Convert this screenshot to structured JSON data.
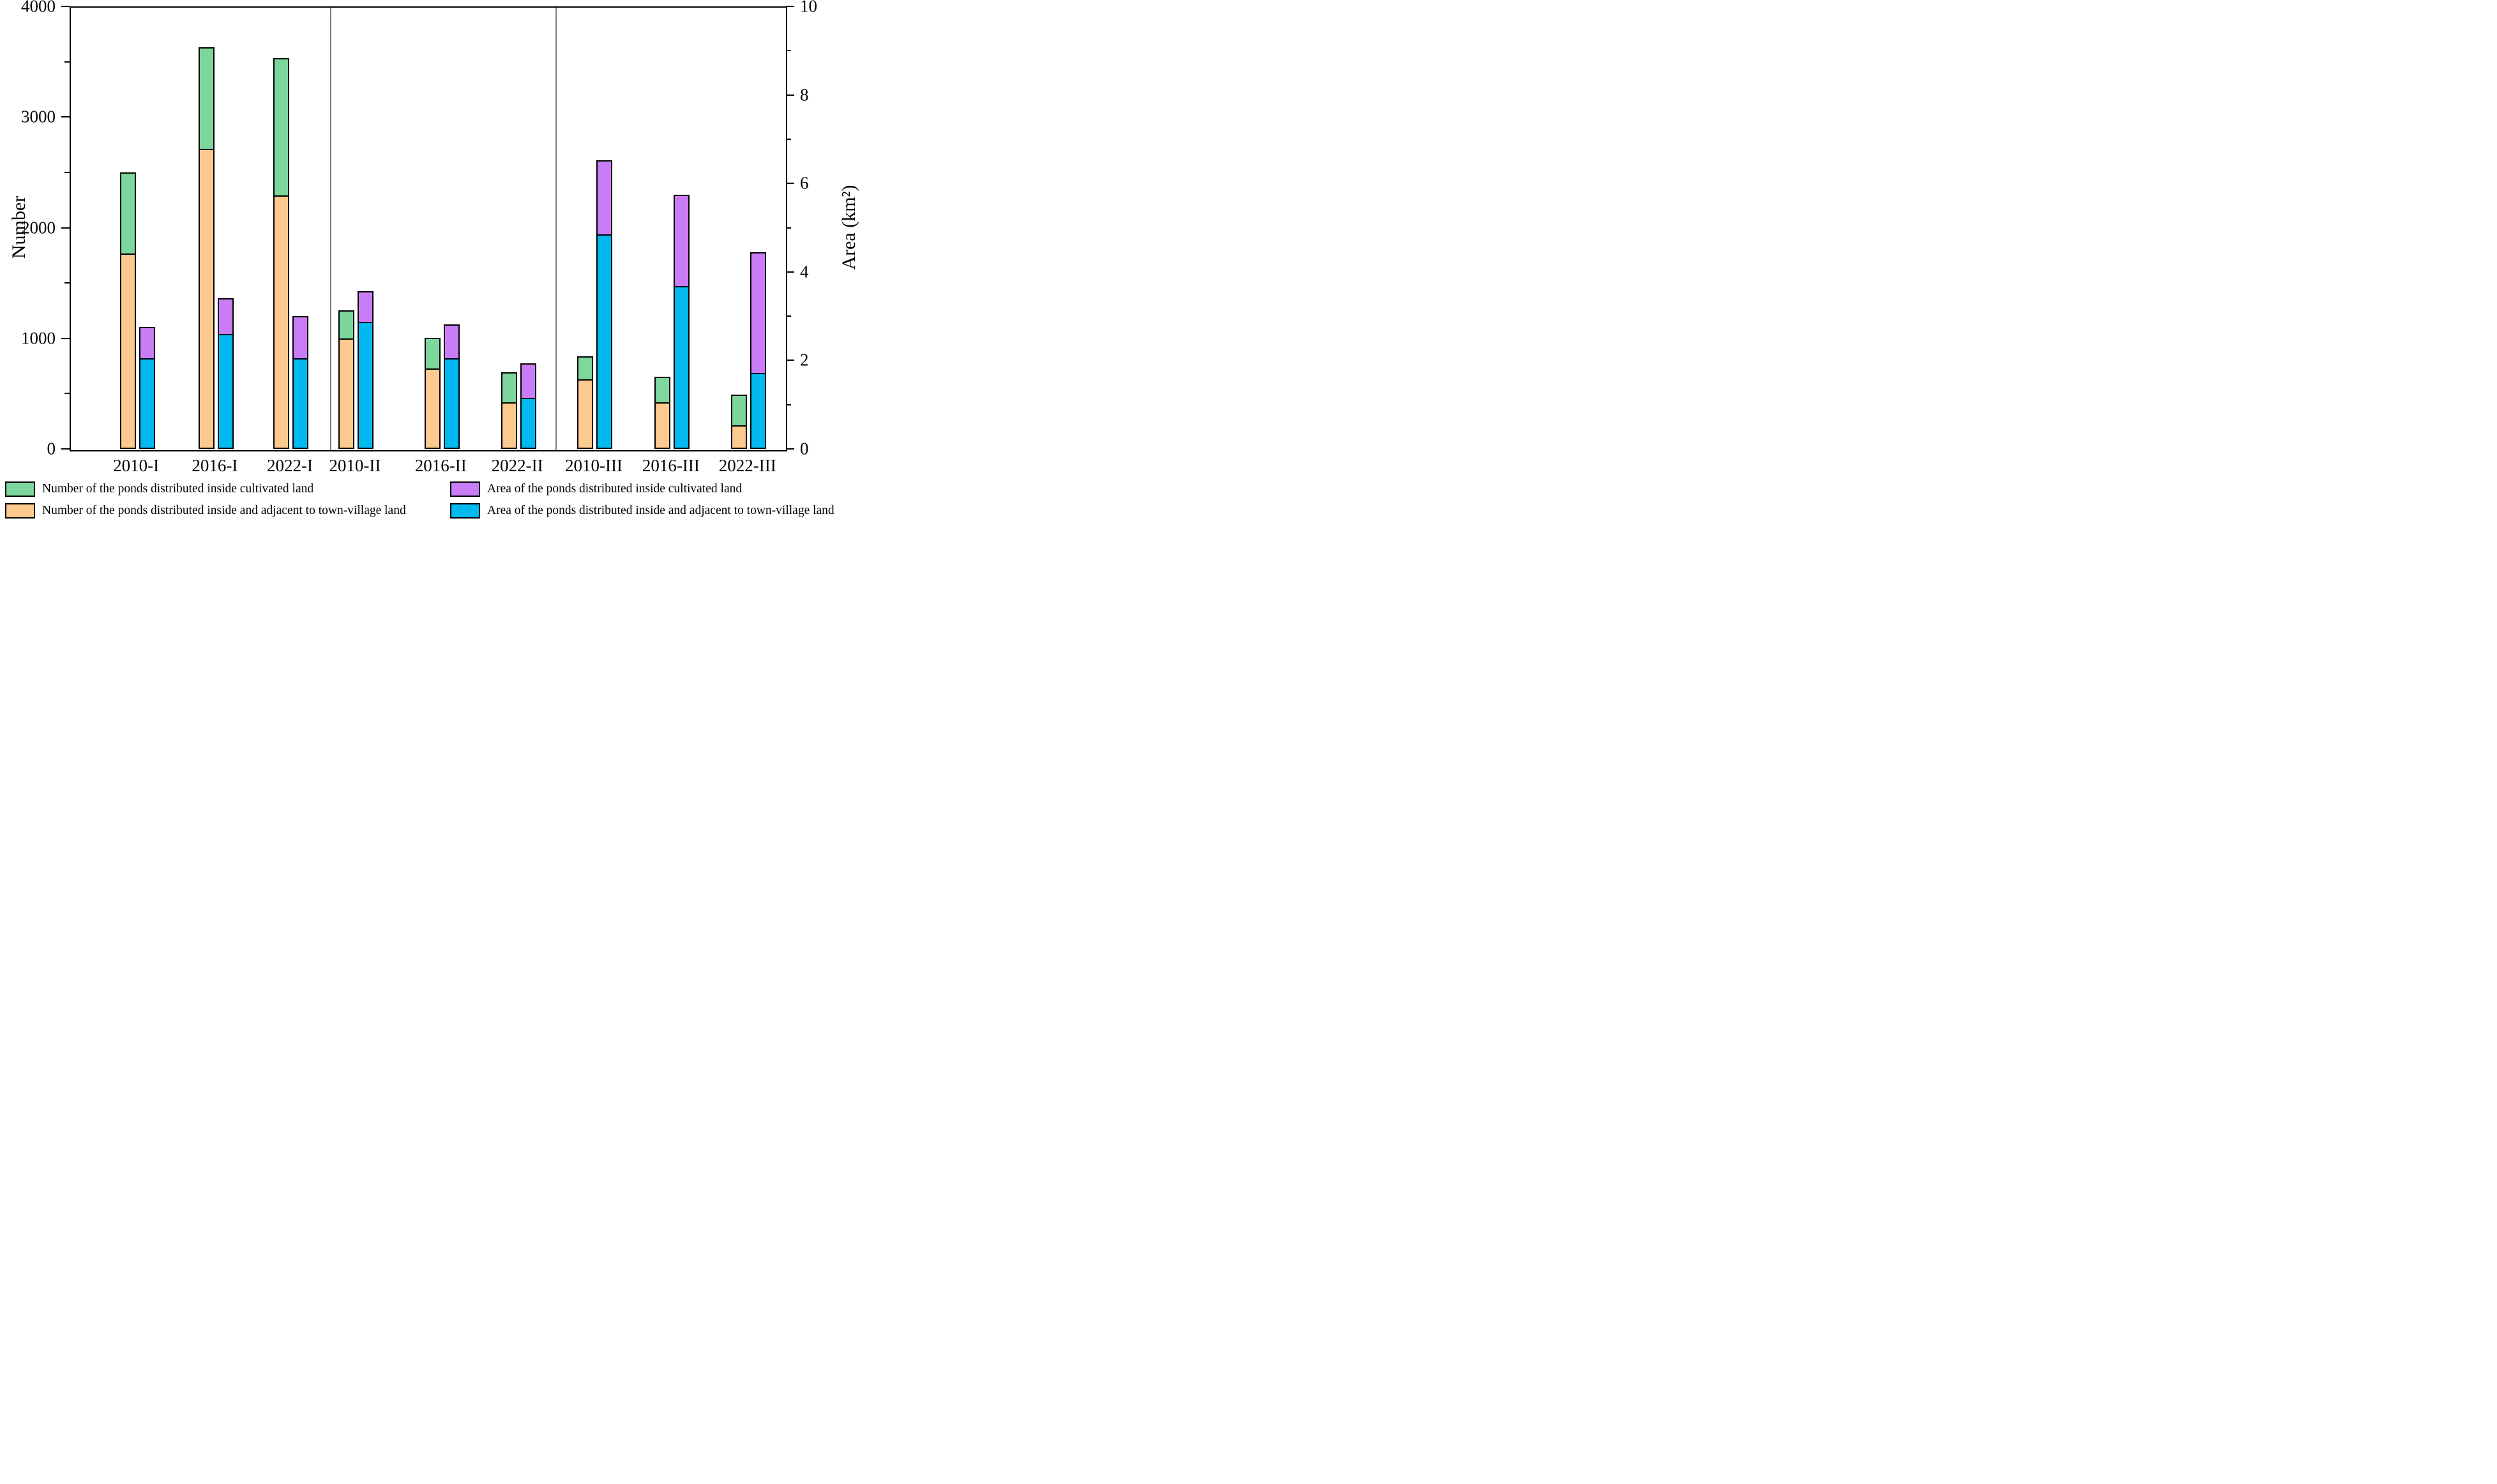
{
  "chart_data": {
    "type": "bar",
    "stacked": true,
    "title": "",
    "categories": [
      "2010-I",
      "2016-I",
      "2022-I",
      "2010-II",
      "2016-II",
      "2022-II",
      "2010-III",
      "2016-III",
      "2022-III"
    ],
    "series": [
      {
        "name": "Number of the ponds distributed inside and adjacent to town-village land",
        "axis": "left",
        "stack": "number",
        "color_key": "orange",
        "values": [
          1765,
          2710,
          2290,
          1000,
          730,
          420,
          630,
          420,
          215
        ]
      },
      {
        "name": "Number of the ponds distributed inside cultivated land",
        "axis": "left",
        "stack": "number",
        "color_key": "green",
        "values": [
          735,
          920,
          1245,
          255,
          275,
          275,
          205,
          230,
          278
        ]
      },
      {
        "name": "Area of the ponds distributed inside and adjacent to town-village land",
        "axis": "right",
        "stack": "area",
        "color_key": "blue",
        "values": [
          2.05,
          2.6,
          2.05,
          2.87,
          2.05,
          1.16,
          4.85,
          3.68,
          1.71
        ]
      },
      {
        "name": "Area of the ponds distributed inside cultivated land",
        "axis": "right",
        "stack": "area",
        "color_key": "purple",
        "values": [
          0.7,
          0.8,
          0.95,
          0.7,
          0.77,
          0.77,
          1.67,
          2.07,
          2.74
        ]
      }
    ],
    "left_axis": {
      "label": "Number",
      "min": 0,
      "max": 4000,
      "major_ticks": [
        0,
        1000,
        2000,
        3000,
        4000
      ],
      "minor_ticks": [
        500,
        1500,
        2500,
        3500
      ]
    },
    "right_axis": {
      "label": "Area (km²)",
      "min": 0,
      "max": 10,
      "major_ticks": [
        0,
        2,
        4,
        6,
        8,
        10
      ],
      "minor_ticks": [
        1,
        3,
        5,
        7,
        9
      ]
    },
    "grid": false,
    "group_separators_after": [
      "2022-I",
      "2022-II"
    ],
    "legend_position": "bottom"
  },
  "legend": {
    "entries": [
      {
        "color_key": "green",
        "label": "Number of the ponds distributed inside cultivated land"
      },
      {
        "color_key": "orange",
        "label": "Number of the ponds distributed inside and adjacent to town-village land"
      },
      {
        "color_key": "purple",
        "label": "Area of the ponds distributed inside cultivated land"
      },
      {
        "color_key": "blue",
        "label": "Area of the ponds distributed inside and adjacent to town-village land"
      }
    ]
  },
  "colors": {
    "green": "#7DD69B",
    "orange": "#FCC98E",
    "blue": "#00B9F0",
    "purple": "#C87DF6",
    "separator": "#808080",
    "axis": "#000000"
  }
}
